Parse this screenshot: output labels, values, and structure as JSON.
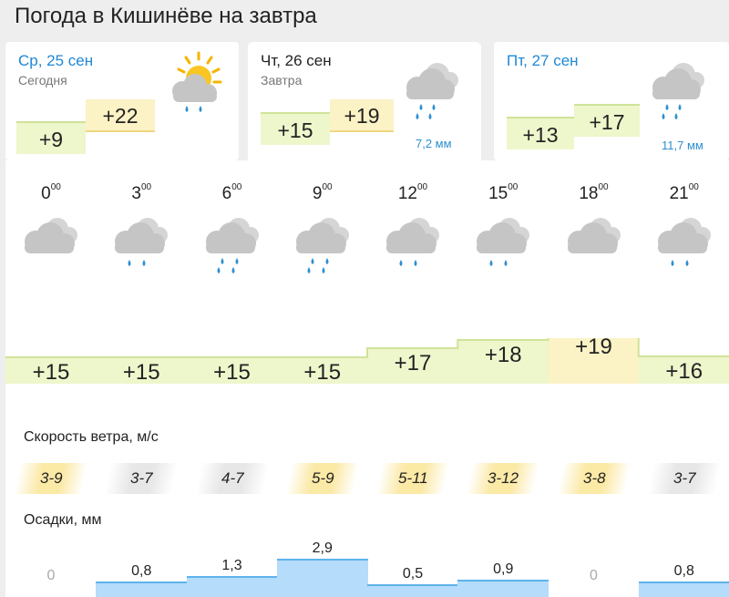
{
  "title": "Погода в Кишинёве на завтра",
  "days": [
    {
      "name": "Ср, 25 сен",
      "sub": "Сегодня",
      "min": "+9",
      "max": "+22",
      "precip": "",
      "icon": "sun-cloud-rain-icon",
      "name_color": "#1e88d6"
    },
    {
      "name": "Чт, 26 сен",
      "sub": "Завтра",
      "min": "+15",
      "max": "+19",
      "precip": "7,2 мм",
      "icon": "cloud-rain-icon",
      "name_color": "#222222"
    },
    {
      "name": "Пт, 27 сен",
      "sub": "",
      "min": "+13",
      "max": "+17",
      "precip": "11,7 мм",
      "icon": "cloud-rain-icon",
      "name_color": "#1e88d6"
    }
  ],
  "hours": [
    {
      "h": "0",
      "m": "00",
      "icon": "cloud-icon",
      "temp": "+15",
      "wind": "3-9",
      "rain": "0",
      "rain_mm": 0
    },
    {
      "h": "3",
      "m": "00",
      "icon": "cloud-rain-icon",
      "temp": "+15",
      "wind": "3-7",
      "rain": "0,8",
      "rain_mm": 0.8
    },
    {
      "h": "6",
      "m": "00",
      "icon": "cloud-heavy-rain-icon",
      "temp": "+15",
      "wind": "4-7",
      "rain": "1,3",
      "rain_mm": 1.3
    },
    {
      "h": "9",
      "m": "00",
      "icon": "cloud-heavy-rain-icon",
      "temp": "+15",
      "wind": "5-9",
      "rain": "2,9",
      "rain_mm": 2.9
    },
    {
      "h": "12",
      "m": "00",
      "icon": "cloud-rain-icon",
      "temp": "+17",
      "wind": "5-11",
      "rain": "0,5",
      "rain_mm": 0.5
    },
    {
      "h": "15",
      "m": "00",
      "icon": "cloud-rain-icon",
      "temp": "+18",
      "wind": "3-12",
      "rain": "0,9",
      "rain_mm": 0.9
    },
    {
      "h": "18",
      "m": "00",
      "icon": "cloud-icon",
      "temp": "+19",
      "wind": "3-8",
      "rain": "0",
      "rain_mm": 0
    },
    {
      "h": "21",
      "m": "00",
      "icon": "cloud-rain-icon",
      "temp": "+16",
      "wind": "3-7",
      "rain": "0,8",
      "rain_mm": 0.8
    }
  ],
  "wind_label": "Скорость ветра, м/с",
  "precip_label": "Осадки, мм",
  "colors": {
    "temp_band": "#eef6cc",
    "temp_band_warm": "#fbf2c6",
    "temp_band_edge": "#cfe398",
    "wind_yellow": "#fbe9a6",
    "wind_grey": "#e7e7e7",
    "rain_fill": "#b5dcfa",
    "rain_edge": "#5fb2ec",
    "accent_blue": "#1e88d6"
  }
}
